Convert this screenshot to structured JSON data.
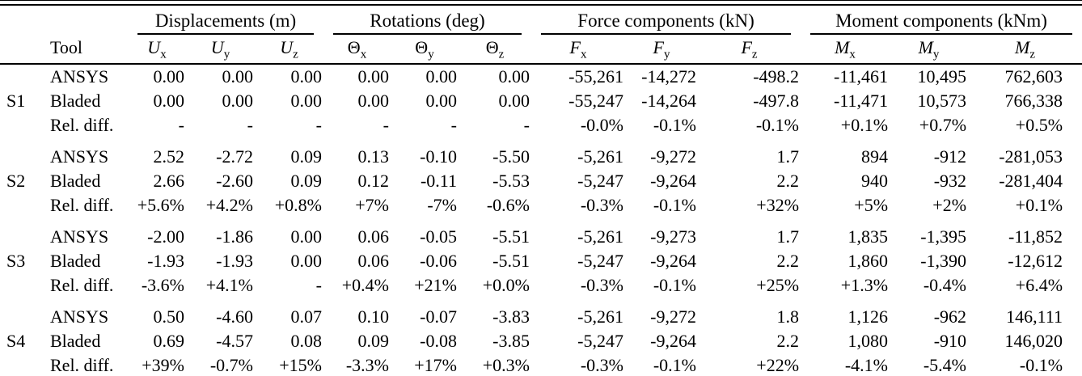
{
  "table": {
    "col_groups": [
      {
        "label": "Displacements (m)"
      },
      {
        "label": "Rotations (deg)"
      },
      {
        "label": "Force components (kN)"
      },
      {
        "label": "Moment components (kNm)"
      }
    ],
    "tool_header": "Tool",
    "sub_headers": [
      {
        "base": "U",
        "sub": "x"
      },
      {
        "base": "U",
        "sub": "y"
      },
      {
        "base": "U",
        "sub": "z"
      },
      {
        "base": "Θ",
        "sub": "x"
      },
      {
        "base": "Θ",
        "sub": "y"
      },
      {
        "base": "Θ",
        "sub": "z"
      },
      {
        "base": "F",
        "sub": "x"
      },
      {
        "base": "F",
        "sub": "y"
      },
      {
        "base": "F",
        "sub": "z"
      },
      {
        "base": "M",
        "sub": "x"
      },
      {
        "base": "M",
        "sub": "y"
      },
      {
        "base": "M",
        "sub": "z"
      }
    ],
    "groups": [
      {
        "id": "S1",
        "rows": [
          {
            "tool": "ANSYS",
            "values": [
              "0.00",
              "0.00",
              "0.00",
              "0.00",
              "0.00",
              "0.00",
              "-55,261",
              "-14,272",
              "-498.2",
              "-11,461",
              "10,495",
              "762,603"
            ]
          },
          {
            "tool": "Bladed",
            "values": [
              "0.00",
              "0.00",
              "0.00",
              "0.00",
              "0.00",
              "0.00",
              "-55,247",
              "-14,264",
              "-497.8",
              "-11,471",
              "10,573",
              "766,338"
            ]
          },
          {
            "tool": "Rel. diff.",
            "values": [
              "-",
              "-",
              "-",
              "-",
              "-",
              "-",
              "-0.0%",
              "-0.1%",
              "-0.1%",
              "+0.1%",
              "+0.7%",
              "+0.5%"
            ]
          }
        ]
      },
      {
        "id": "S2",
        "rows": [
          {
            "tool": "ANSYS",
            "values": [
              "2.52",
              "-2.72",
              "0.09",
              "0.13",
              "-0.10",
              "-5.50",
              "-5,261",
              "-9,272",
              "1.7",
              "894",
              "-912",
              "-281,053"
            ]
          },
          {
            "tool": "Bladed",
            "values": [
              "2.66",
              "-2.60",
              "0.09",
              "0.12",
              "-0.11",
              "-5.53",
              "-5,247",
              "-9,264",
              "2.2",
              "940",
              "-932",
              "-281,404"
            ]
          },
          {
            "tool": "Rel. diff.",
            "values": [
              "+5.6%",
              "+4.2%",
              "+0.8%",
              "+7%",
              "-7%",
              "-0.6%",
              "-0.3%",
              "-0.1%",
              "+32%",
              "+5%",
              "+2%",
              "+0.1%"
            ]
          }
        ]
      },
      {
        "id": "S3",
        "rows": [
          {
            "tool": "ANSYS",
            "values": [
              "-2.00",
              "-1.86",
              "0.00",
              "0.06",
              "-0.05",
              "-5.51",
              "-5,261",
              "-9,273",
              "1.7",
              "1,835",
              "-1,395",
              "-11,852"
            ]
          },
          {
            "tool": "Bladed",
            "values": [
              "-1.93",
              "-1.93",
              "0.00",
              "0.06",
              "-0.06",
              "-5.51",
              "-5,247",
              "-9,264",
              "2.2",
              "1,860",
              "-1,390",
              "-12,612"
            ]
          },
          {
            "tool": "Rel. diff.",
            "values": [
              "-3.6%",
              "+4.1%",
              "-",
              "+0.4%",
              "+21%",
              "+0.0%",
              "-0.3%",
              "-0.1%",
              "+25%",
              "+1.3%",
              "-0.4%",
              "+6.4%"
            ]
          }
        ]
      },
      {
        "id": "S4",
        "rows": [
          {
            "tool": "ANSYS",
            "values": [
              "0.50",
              "-4.60",
              "0.07",
              "0.10",
              "-0.07",
              "-3.83",
              "-5,261",
              "-9,272",
              "1.8",
              "1,126",
              "-962",
              "146,111"
            ]
          },
          {
            "tool": "Bladed",
            "values": [
              "0.69",
              "-4.57",
              "0.08",
              "0.09",
              "-0.08",
              "-3.85",
              "-5,247",
              "-9,264",
              "2.2",
              "1,080",
              "-910",
              "146,020"
            ]
          },
          {
            "tool": "Rel. diff.",
            "values": [
              "+39%",
              "-0.7%",
              "+15%",
              "-3.3%",
              "+17%",
              "+0.3%",
              "-0.3%",
              "-0.1%",
              "+22%",
              "-4.1%",
              "-5.4%",
              "-0.1%"
            ]
          }
        ]
      }
    ]
  }
}
